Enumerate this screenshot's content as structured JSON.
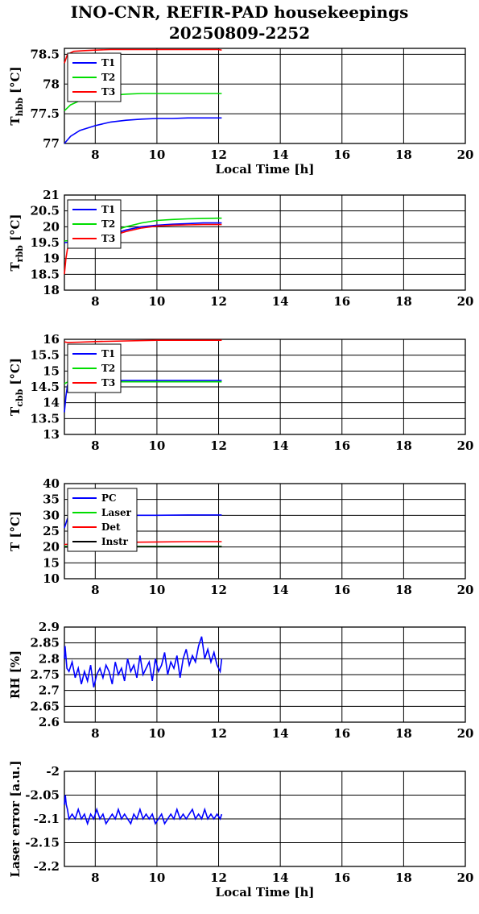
{
  "title": {
    "line1": "INO-CNR, REFIR-PAD housekeepings",
    "line2": "20250809-2252"
  },
  "chart_data": [
    {
      "type": "line",
      "ylabel_main": "T",
      "ylabel_sub": "hbb",
      "ylabel_unit": "[°C]",
      "xlabel": "Local Time [h]",
      "xlim": [
        7,
        20
      ],
      "ylim": [
        77,
        78.6
      ],
      "xticks": [
        "8",
        "10",
        "12",
        "14",
        "16",
        "18",
        "20"
      ],
      "yticks": [
        "77",
        "77.5",
        "78",
        "78.5"
      ],
      "grid": true,
      "legend_position": "top-left",
      "series": [
        {
          "name": "T1",
          "color": "#0000ff",
          "x": [
            7.0,
            7.2,
            7.5,
            8.0,
            8.5,
            9.0,
            9.5,
            10.0,
            10.5,
            11.0,
            11.5,
            12.0,
            12.1
          ],
          "y": [
            77.0,
            77.12,
            77.22,
            77.3,
            77.36,
            77.39,
            77.41,
            77.42,
            77.42,
            77.43,
            77.43,
            77.43,
            77.43
          ]
        },
        {
          "name": "T2",
          "color": "#00dd00",
          "x": [
            7.0,
            7.2,
            7.5,
            8.0,
            8.5,
            9.0,
            9.5,
            10.0,
            10.5,
            11.0,
            11.5,
            12.0,
            12.1
          ],
          "y": [
            77.55,
            77.65,
            77.72,
            77.78,
            77.81,
            77.83,
            77.84,
            77.84,
            77.84,
            77.84,
            77.84,
            77.84,
            77.84
          ]
        },
        {
          "name": "T3",
          "color": "#ff0000",
          "x": [
            7.0,
            7.1,
            7.3,
            7.6,
            8.0,
            8.5,
            9.0,
            9.5,
            10.0,
            10.5,
            11.0,
            11.5,
            12.0,
            12.1
          ],
          "y": [
            78.35,
            78.5,
            78.55,
            78.56,
            78.57,
            78.58,
            78.58,
            78.58,
            78.58,
            78.58,
            78.58,
            78.58,
            78.58,
            78.57
          ]
        }
      ]
    },
    {
      "type": "line",
      "ylabel_main": "T",
      "ylabel_sub": "rbb",
      "ylabel_unit": "[°C]",
      "xlabel": "",
      "xlim": [
        7,
        20
      ],
      "ylim": [
        18,
        21
      ],
      "xticks": [
        "8",
        "10",
        "12",
        "14",
        "16",
        "18",
        "20"
      ],
      "yticks": [
        "18",
        "18.5",
        "19",
        "19.5",
        "20",
        "20.5",
        "21"
      ],
      "grid": true,
      "legend_position": "top-left",
      "series": [
        {
          "name": "T1",
          "color": "#0000ff",
          "x": [
            7.0,
            7.3,
            7.6,
            8.0,
            8.5,
            9.0,
            9.5,
            10.0,
            10.5,
            11.0,
            11.5,
            12.0,
            12.1
          ],
          "y": [
            19.5,
            19.52,
            19.56,
            19.62,
            19.75,
            19.9,
            20.0,
            20.05,
            20.08,
            20.1,
            20.12,
            20.12,
            20.12
          ]
        },
        {
          "name": "T2",
          "color": "#00dd00",
          "x": [
            7.0,
            7.3,
            7.6,
            8.0,
            8.5,
            9.0,
            9.5,
            10.0,
            10.5,
            11.0,
            11.5,
            12.0,
            12.1
          ],
          "y": [
            19.55,
            19.58,
            19.62,
            19.7,
            19.85,
            20.0,
            20.12,
            20.2,
            20.23,
            20.25,
            20.26,
            20.27,
            20.27
          ]
        },
        {
          "name": "T3",
          "color": "#ff0000",
          "x": [
            7.0,
            7.05,
            7.1,
            7.2,
            7.4,
            7.8,
            8.5,
            9.0,
            9.5,
            10.0,
            10.5,
            11.0,
            11.5,
            12.0,
            12.1
          ],
          "y": [
            18.5,
            19.0,
            19.3,
            19.48,
            19.52,
            19.56,
            19.7,
            19.85,
            19.96,
            20.02,
            20.05,
            20.06,
            20.07,
            20.07,
            20.07
          ]
        }
      ]
    },
    {
      "type": "line",
      "ylabel_main": "T",
      "ylabel_sub": "cbb",
      "ylabel_unit": "[°C]",
      "xlabel": "",
      "xlim": [
        7,
        20
      ],
      "ylim": [
        13,
        16
      ],
      "xticks": [
        "8",
        "10",
        "12",
        "14",
        "16",
        "18",
        "20"
      ],
      "yticks": [
        "13",
        "13.5",
        "14",
        "14.5",
        "15",
        "15.5",
        "16"
      ],
      "grid": true,
      "legend_position": "top-left",
      "series": [
        {
          "name": "T1",
          "color": "#0000ff",
          "x": [
            7.0,
            7.05,
            7.1,
            7.2,
            7.5,
            8.0,
            9.0,
            10.0,
            11.0,
            12.0,
            12.1
          ],
          "y": [
            13.7,
            14.2,
            14.55,
            14.68,
            14.7,
            14.7,
            14.7,
            14.7,
            14.7,
            14.7,
            14.7
          ]
        },
        {
          "name": "T2",
          "color": "#00dd00",
          "x": [
            7.0,
            7.1,
            7.5,
            8.0,
            9.0,
            10.0,
            11.0,
            12.0,
            12.1
          ],
          "y": [
            14.6,
            14.65,
            14.67,
            14.66,
            14.66,
            14.66,
            14.66,
            14.66,
            14.66
          ]
        },
        {
          "name": "T3",
          "color": "#ff0000",
          "x": [
            7.0,
            7.1,
            7.5,
            8.0,
            9.0,
            10.0,
            11.0,
            12.0,
            12.1
          ],
          "y": [
            15.92,
            15.9,
            15.91,
            15.93,
            15.95,
            15.97,
            15.97,
            15.97,
            15.97
          ]
        }
      ]
    },
    {
      "type": "line",
      "ylabel_main": "T [°C]",
      "ylabel_sub": "",
      "ylabel_unit": "",
      "xlabel": "",
      "xlim": [
        7,
        20
      ],
      "ylim": [
        10,
        40
      ],
      "xticks": [
        "8",
        "10",
        "12",
        "14",
        "16",
        "18",
        "20"
      ],
      "yticks": [
        "10",
        "15",
        "20",
        "25",
        "30",
        "35",
        "40"
      ],
      "grid": true,
      "legend_position": "top-left",
      "series": [
        {
          "name": "PC",
          "color": "#0000ff",
          "x": [
            7.0,
            7.05,
            7.1,
            7.3,
            8.0,
            9.0,
            10.0,
            11.0,
            12.0,
            12.1
          ],
          "y": [
            26.0,
            27.5,
            29.0,
            29.8,
            30.0,
            30.0,
            30.0,
            30.1,
            30.1,
            30.1
          ]
        },
        {
          "name": "Laser",
          "color": "#00dd00",
          "x": [
            7.0,
            8.0,
            9.0,
            10.0,
            11.0,
            12.0,
            12.1
          ],
          "y": [
            20.2,
            20.2,
            20.2,
            20.2,
            20.2,
            20.2,
            20.2
          ]
        },
        {
          "name": "Det",
          "color": "#ff0000",
          "x": [
            7.0,
            7.5,
            8.0,
            9.0,
            10.0,
            11.0,
            12.0,
            12.1
          ],
          "y": [
            20.8,
            21.0,
            21.3,
            21.5,
            21.6,
            21.7,
            21.7,
            21.7
          ]
        },
        {
          "name": "Instr",
          "color": "#000000",
          "x": [
            7.0,
            8.0,
            9.0,
            10.0,
            11.0,
            12.0,
            12.1
          ],
          "y": [
            20.0,
            20.0,
            20.1,
            20.1,
            20.1,
            20.1,
            20.1
          ]
        }
      ]
    },
    {
      "type": "line",
      "ylabel_main": "RH [%]",
      "ylabel_sub": "",
      "ylabel_unit": "",
      "xlabel": "",
      "xlim": [
        7,
        20
      ],
      "ylim": [
        2.6,
        2.9
      ],
      "xticks": [
        "8",
        "10",
        "12",
        "14",
        "16",
        "18",
        "20"
      ],
      "yticks": [
        "2.6",
        "2.65",
        "2.7",
        "2.75",
        "2.8",
        "2.85",
        "2.9"
      ],
      "grid": true,
      "legend_position": "none",
      "series": [
        {
          "name": "",
          "color": "#0000ff",
          "x": [
            7.0,
            7.02,
            7.08,
            7.15,
            7.25,
            7.35,
            7.45,
            7.55,
            7.65,
            7.75,
            7.85,
            7.95,
            8.05,
            8.15,
            8.25,
            8.35,
            8.45,
            8.55,
            8.65,
            8.75,
            8.85,
            8.95,
            9.05,
            9.15,
            9.25,
            9.35,
            9.45,
            9.55,
            9.65,
            9.75,
            9.85,
            9.95,
            10.05,
            10.15,
            10.25,
            10.35,
            10.45,
            10.55,
            10.65,
            10.75,
            10.85,
            10.95,
            11.05,
            11.15,
            11.25,
            11.35,
            11.45,
            11.55,
            11.65,
            11.75,
            11.85,
            11.95,
            12.05,
            12.1
          ],
          "y": [
            2.8,
            2.84,
            2.77,
            2.76,
            2.79,
            2.74,
            2.77,
            2.72,
            2.76,
            2.73,
            2.78,
            2.71,
            2.75,
            2.77,
            2.74,
            2.78,
            2.76,
            2.72,
            2.79,
            2.75,
            2.77,
            2.73,
            2.8,
            2.76,
            2.78,
            2.74,
            2.81,
            2.75,
            2.77,
            2.79,
            2.73,
            2.8,
            2.76,
            2.78,
            2.82,
            2.75,
            2.79,
            2.77,
            2.81,
            2.74,
            2.8,
            2.83,
            2.78,
            2.81,
            2.79,
            2.84,
            2.87,
            2.8,
            2.83,
            2.79,
            2.82,
            2.78,
            2.76,
            2.8
          ]
        }
      ]
    },
    {
      "type": "line",
      "ylabel_main": "Laser error [a.u.]",
      "ylabel_sub": "",
      "ylabel_unit": "",
      "xlabel": "Local Time [h]",
      "xlim": [
        7,
        20
      ],
      "ylim": [
        -2.2,
        -2.0
      ],
      "xticks": [
        "8",
        "10",
        "12",
        "14",
        "16",
        "18",
        "20"
      ],
      "yticks": [
        "-2",
        "-2.05",
        "-2.1",
        "-2.15",
        "-2.2"
      ],
      "grid": true,
      "legend_position": "none",
      "series": [
        {
          "name": "",
          "color": "#0000ff",
          "x": [
            7.0,
            7.03,
            7.06,
            7.1,
            7.15,
            7.25,
            7.35,
            7.45,
            7.55,
            7.65,
            7.75,
            7.85,
            7.95,
            8.05,
            8.15,
            8.25,
            8.35,
            8.45,
            8.55,
            8.65,
            8.75,
            8.85,
            8.95,
            9.05,
            9.15,
            9.25,
            9.35,
            9.45,
            9.55,
            9.65,
            9.75,
            9.85,
            9.95,
            10.05,
            10.15,
            10.25,
            10.35,
            10.45,
            10.55,
            10.65,
            10.75,
            10.85,
            10.95,
            11.05,
            11.15,
            11.25,
            11.35,
            11.45,
            11.55,
            11.65,
            11.75,
            11.85,
            11.95,
            12.05,
            12.1
          ],
          "y": [
            -2.07,
            -2.05,
            -2.07,
            -2.08,
            -2.1,
            -2.09,
            -2.1,
            -2.08,
            -2.1,
            -2.09,
            -2.11,
            -2.09,
            -2.1,
            -2.08,
            -2.1,
            -2.09,
            -2.11,
            -2.1,
            -2.09,
            -2.1,
            -2.08,
            -2.1,
            -2.09,
            -2.1,
            -2.11,
            -2.09,
            -2.1,
            -2.08,
            -2.1,
            -2.09,
            -2.1,
            -2.09,
            -2.11,
            -2.1,
            -2.09,
            -2.11,
            -2.1,
            -2.09,
            -2.1,
            -2.08,
            -2.1,
            -2.09,
            -2.1,
            -2.09,
            -2.08,
            -2.1,
            -2.09,
            -2.1,
            -2.08,
            -2.1,
            -2.09,
            -2.1,
            -2.09,
            -2.1,
            -2.09
          ]
        }
      ]
    }
  ]
}
